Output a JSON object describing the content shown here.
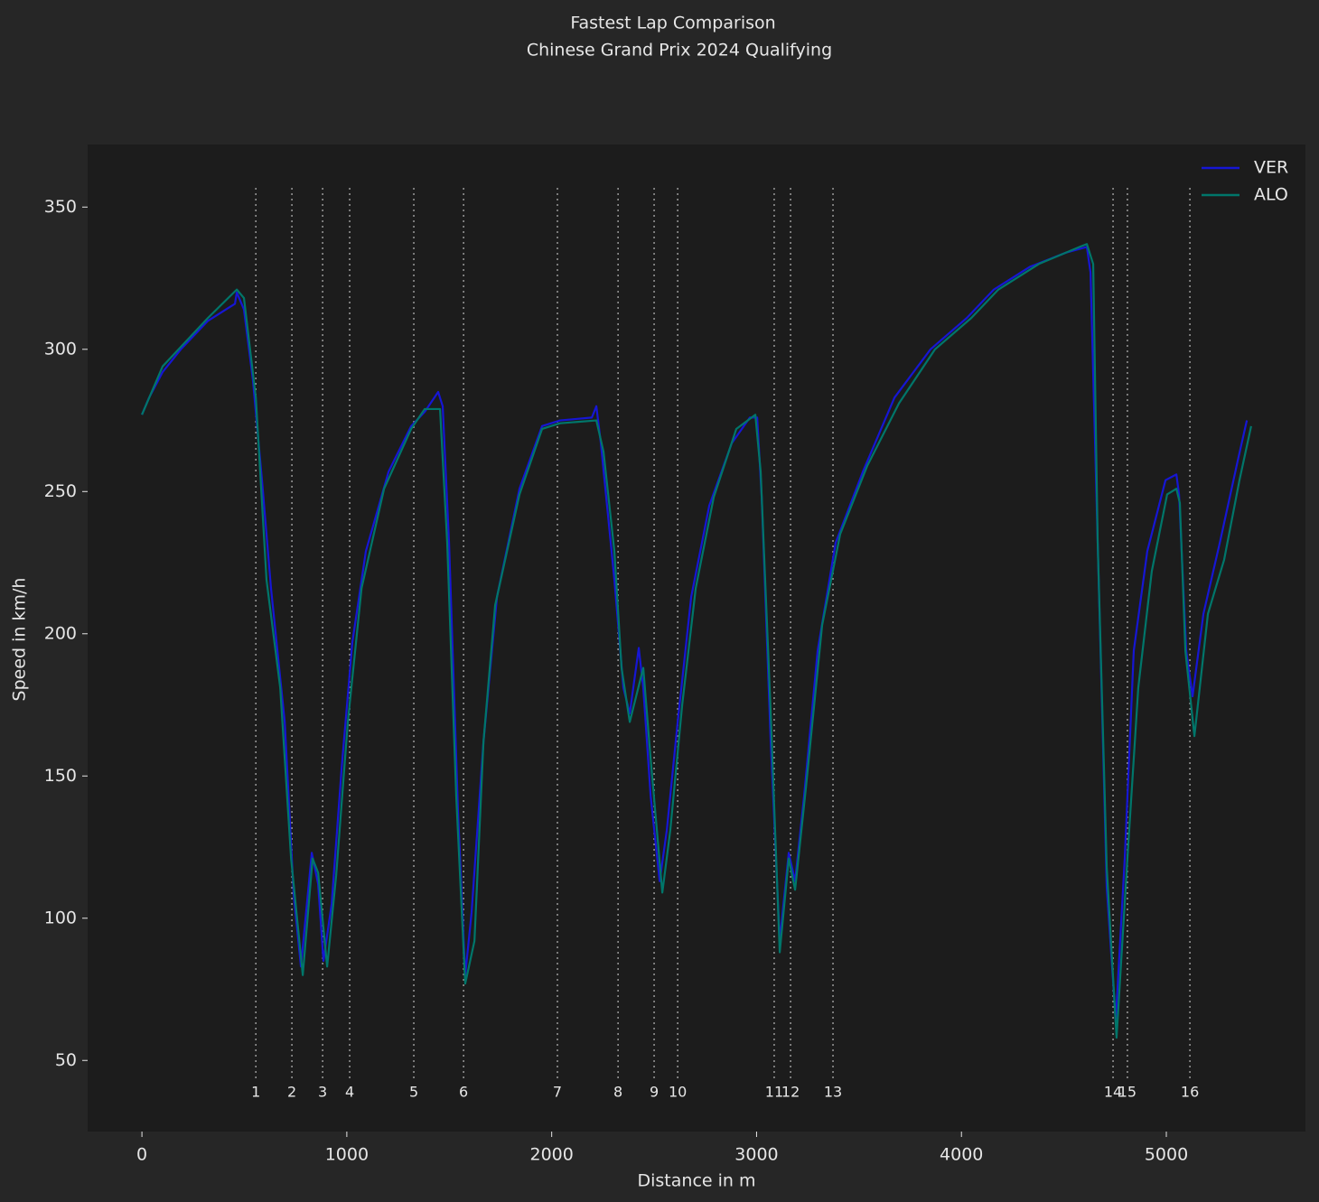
{
  "chart_data": {
    "type": "line",
    "title": "Fastest Lap Comparison",
    "subtitle": "Chinese Grand Prix 2024 Qualifying",
    "xlabel": "Distance in m",
    "ylabel": "Speed in km/h",
    "xlim": [
      -265,
      5679
    ],
    "ylim": [
      25,
      372
    ],
    "xticks": [
      0,
      1000,
      2000,
      3000,
      4000,
      5000
    ],
    "yticks": [
      50,
      100,
      150,
      200,
      250,
      300,
      350
    ],
    "legend": "upper right",
    "series": [
      {
        "name": "VER",
        "color": "#1616d4",
        "x": [
          0,
          35,
          101,
          190,
          322,
          454,
          463,
          498,
          542,
          586,
          630,
          697,
          741,
          776,
          829,
          860,
          886,
          926,
          975,
          1027,
          1093,
          1204,
          1314,
          1380,
          1446,
          1468,
          1499,
          1543,
          1578,
          1609,
          1667,
          1733,
          1843,
          1953,
          2041,
          2196,
          2218,
          2240,
          2306,
          2350,
          2381,
          2425,
          2447,
          2483,
          2527,
          2562,
          2615,
          2681,
          2769,
          2879,
          2967,
          3003,
          3025,
          3069,
          3113,
          3157,
          3188,
          3232,
          3298,
          3386,
          3519,
          3673,
          3849,
          4026,
          4158,
          4334,
          4511,
          4612,
          4630,
          4665,
          4709,
          4753,
          4797,
          4841,
          4907,
          4996,
          5049,
          5062,
          5097,
          5128,
          5181,
          5261,
          5349,
          5393
        ],
        "values": [
          277,
          283,
          292,
          300,
          310,
          316,
          320,
          314,
          289,
          254,
          216,
          169,
          108,
          83,
          123,
          112,
          85,
          105,
          153,
          197,
          229,
          257,
          273,
          278,
          285,
          280,
          232,
          137,
          80,
          102,
          162,
          213,
          251,
          273,
          275,
          276,
          280,
          267,
          219,
          181,
          172,
          195,
          181,
          143,
          113,
          131,
          169,
          213,
          245,
          267,
          276,
          276,
          248,
          162,
          92,
          123,
          113,
          143,
          194,
          232,
          257,
          283,
          300,
          311,
          321,
          329,
          334,
          336,
          327,
          232,
          111,
          64,
          121,
          194,
          229,
          254,
          256,
          249,
          194,
          178,
          207,
          232,
          261,
          275
        ]
      },
      {
        "name": "ALO",
        "color": "#00766a",
        "x": [
          0,
          101,
          322,
          463,
          498,
          556,
          608,
          675,
          728,
          785,
          833,
          860,
          904,
          948,
          1005,
          1072,
          1182,
          1314,
          1380,
          1455,
          1490,
          1534,
          1578,
          1623,
          1667,
          1724,
          1843,
          1953,
          2041,
          2218,
          2253,
          2306,
          2341,
          2381,
          2447,
          2483,
          2540,
          2579,
          2637,
          2703,
          2791,
          2901,
          2994,
          3020,
          3069,
          3113,
          3157,
          3188,
          3241,
          3320,
          3408,
          3540,
          3695,
          3871,
          4048,
          4180,
          4378,
          4577,
          4612,
          4643,
          4665,
          4709,
          4757,
          4810,
          4863,
          4929,
          5004,
          5049,
          5066,
          5093,
          5137,
          5203,
          5282,
          5357,
          5414
        ],
        "values": [
          277,
          294,
          311,
          321,
          318,
          283,
          219,
          181,
          121,
          80,
          121,
          116,
          83,
          115,
          169,
          216,
          251,
          272,
          279,
          279,
          232,
          143,
          77,
          92,
          162,
          210,
          249,
          272,
          274,
          275,
          264,
          229,
          188,
          169,
          188,
          156,
          109,
          131,
          175,
          216,
          248,
          272,
          277,
          257,
          172,
          88,
          121,
          110,
          146,
          203,
          235,
          259,
          281,
          300,
          311,
          321,
          330,
          336,
          337,
          330,
          232,
          118,
          58,
          121,
          181,
          222,
          249,
          251,
          246,
          194,
          164,
          207,
          226,
          254,
          273
        ]
      }
    ],
    "corners": [
      {
        "number": "1",
        "distance": 556
      },
      {
        "number": "2",
        "distance": 732
      },
      {
        "number": "3",
        "distance": 882
      },
      {
        "number": "4",
        "distance": 1014
      },
      {
        "number": "5",
        "distance": 1327
      },
      {
        "number": "6",
        "distance": 1570
      },
      {
        "number": "7",
        "distance": 2028
      },
      {
        "number": "8",
        "distance": 2324
      },
      {
        "number": "9",
        "distance": 2500
      },
      {
        "number": "10",
        "distance": 2615
      },
      {
        "number": "11",
        "distance": 3086
      },
      {
        "number": "12",
        "distance": 3166
      },
      {
        "number": "13",
        "distance": 3373
      },
      {
        "number": "14",
        "distance": 4740
      },
      {
        "number": "15",
        "distance": 4810
      },
      {
        "number": "16",
        "distance": 5115
      }
    ]
  }
}
